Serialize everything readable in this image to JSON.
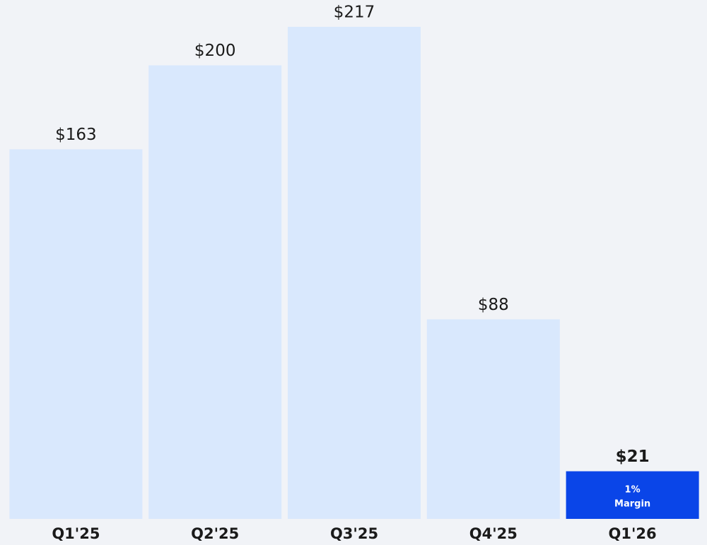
{
  "chart_data": {
    "type": "bar",
    "categories": [
      "Q1'25",
      "Q2'25",
      "Q3'25",
      "Q4'25",
      "Q1'26"
    ],
    "values": [
      163,
      200,
      217,
      88,
      21
    ],
    "value_labels": [
      "$163",
      "$200",
      "$217",
      "$88",
      "$21"
    ],
    "colors": [
      "#d9e8fd",
      "#d9e8fd",
      "#d9e8fd",
      "#d9e8fd",
      "#0a45e8"
    ],
    "annotation": [
      "1%",
      "Margin"
    ]
  }
}
